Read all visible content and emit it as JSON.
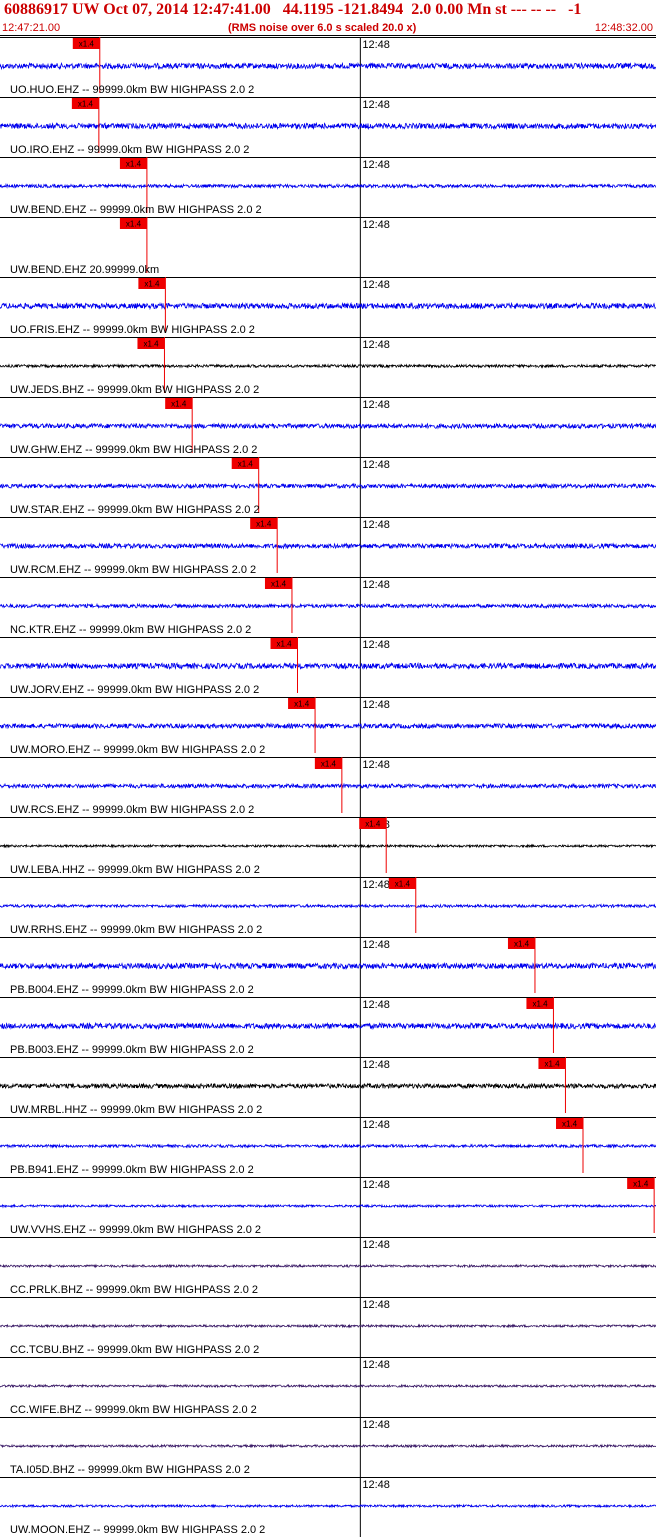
{
  "header": {
    "title": "60886917 UW Oct 07, 2014 12:47:41.00   44.1195 -121.8494  2.0 0.00 Mn st --- -- --   -1",
    "start_time": "12:47:21.00",
    "rms_note": "(RMS noise over 6.0 s scaled 20.0 x)",
    "end_time": "12:48:32.00"
  },
  "colors": {
    "blue": "#0000ee",
    "black": "#000000",
    "purple": "#3a1a66",
    "pick": "#ee0000"
  },
  "chart_data": {
    "type": "line",
    "title": "60886917 UW Oct 07, 2014 12:47:41.00   44.1195 -121.8494  2.0 0.00 Mn st --- -- --   -1",
    "x_range": [
      "12:47:21.00",
      "12:48:32.00"
    ],
    "minute_tick_label": "12:48",
    "pick_label": "x1.4",
    "channels": [
      {
        "label": "UO.HUO.EHZ -- 99999.0km BW  HIGHPASS  2.0  2",
        "color": "blue",
        "pick_time": "12:47:31.8",
        "amplitude": 0.3,
        "events": [
          [
            31.5,
            0.9,
            2.5
          ],
          [
            32.0,
            0.7,
            1.5
          ],
          [
            38.2,
            0.5,
            1.5
          ],
          [
            50.0,
            0.6,
            1.5
          ],
          [
            55.0,
            0.4,
            1.5
          ],
          [
            62.5,
            0.6,
            2.0
          ],
          [
            65.0,
            0.9,
            3.0
          ],
          [
            70.0,
            0.8,
            1.0
          ]
        ]
      },
      {
        "label": "UO.IRO.EHZ -- 99999.0km BW  HIGHPASS  2.0  2",
        "color": "blue",
        "pick_time": "12:47:31.7",
        "amplitude": 0.3,
        "events": [
          [
            31.5,
            0.9,
            2.5
          ],
          [
            34.0,
            0.5,
            1.5
          ],
          [
            38.0,
            0.7,
            1.5
          ],
          [
            44.0,
            0.5,
            1.5
          ],
          [
            48.0,
            0.4,
            1.5
          ],
          [
            55.0,
            0.5,
            1.5
          ],
          [
            64.5,
            0.9,
            3.0
          ],
          [
            70.0,
            0.7,
            1.0
          ]
        ]
      },
      {
        "label": "UW.BEND.EHZ -- 99999.0km BW  HIGHPASS  2.0  2",
        "color": "blue",
        "pick_time": "12:47:36.9",
        "amplitude": 0.18,
        "events": [
          [
            30.5,
            0.4,
            3.0
          ],
          [
            37.5,
            0.7,
            1.5
          ],
          [
            54.5,
            0.3,
            1.5
          ],
          [
            61.0,
            0.3,
            2.0
          ]
        ]
      },
      {
        "label": "UW.BEND.EHZ 20.99999.0km",
        "color": "blue",
        "pick_time": "12:47:36.9",
        "amplitude": 0.0,
        "events": []
      },
      {
        "label": "UO.FRIS.EHZ -- 99999.0km BW  HIGHPASS  2.0  2",
        "color": "blue",
        "pick_time": "12:47:38.9",
        "amplitude": 0.3,
        "events": [
          [
            30.5,
            0.8,
            2.0
          ],
          [
            33.5,
            0.9,
            1.5
          ],
          [
            36.5,
            0.6,
            1.5
          ],
          [
            38.0,
            0.6,
            1.5
          ],
          [
            44.0,
            0.5,
            1.5
          ],
          [
            49.0,
            0.5,
            1.5
          ],
          [
            56.0,
            0.7,
            1.5
          ],
          [
            64.0,
            0.9,
            3.0
          ],
          [
            70.0,
            0.6,
            1.0
          ]
        ]
      },
      {
        "label": "UW.JEDS.BHZ -- 99999.0km BW  HIGHPASS  2.0  2",
        "color": "black",
        "pick_time": "12:47:38.8",
        "amplitude": 0.15,
        "events": []
      },
      {
        "label": "UW.GHW.EHZ -- 99999.0km BW  HIGHPASS  2.0  2",
        "color": "blue",
        "pick_time": "12:47:41.8",
        "amplitude": 0.25,
        "events": [
          [
            43.0,
            1.0,
            5.0
          ],
          [
            47.0,
            0.6,
            2.0
          ]
        ]
      },
      {
        "label": "UW.STAR.EHZ -- 99999.0km BW  HIGHPASS  2.0  2",
        "color": "blue",
        "pick_time": "12:47:49.0",
        "amplitude": 0.22,
        "events": [
          [
            49.3,
            0.9,
            1.5
          ],
          [
            61.0,
            0.3,
            1.5
          ]
        ]
      },
      {
        "label": "UW.RCM.EHZ -- 99999.0km BW  HIGHPASS  2.0  2",
        "color": "blue",
        "pick_time": "12:47:51.0",
        "amplitude": 0.25,
        "events": [
          [
            37.5,
            0.5,
            2.0
          ],
          [
            51.5,
            0.6,
            2.0
          ],
          [
            58.5,
            0.9,
            4.0
          ],
          [
            62.0,
            0.8,
            1.0
          ]
        ]
      },
      {
        "label": "NC.KTR.EHZ -- 99999.0km BW  HIGHPASS  2.0  2",
        "color": "blue",
        "pick_time": "12:47:52.6",
        "amplitude": 0.2,
        "events": [
          [
            52.5,
            1.0,
            2.5
          ],
          [
            54.5,
            0.9,
            2.5
          ],
          [
            57.5,
            0.5,
            2.0
          ],
          [
            66.0,
            0.4,
            1.5
          ]
        ]
      },
      {
        "label": "UW.JORV.EHZ -- 99999.0km BW  HIGHPASS  2.0  2",
        "color": "blue",
        "pick_time": "12:47:53.2",
        "amplitude": 0.3,
        "events": [
          [
            29.0,
            0.9,
            4.0
          ],
          [
            32.0,
            0.5,
            2.0
          ],
          [
            40.0,
            0.4,
            2.0
          ],
          [
            53.5,
            0.6,
            3.0
          ],
          [
            60.0,
            0.6,
            3.0
          ],
          [
            68.0,
            0.6,
            3.0
          ]
        ]
      },
      {
        "label": "UW.MORO.EHZ -- 99999.0km BW  HIGHPASS  2.0  2",
        "color": "blue",
        "pick_time": "12:47:55.1",
        "amplitude": 0.25,
        "events": [
          [
            56.0,
            0.9,
            4.0
          ],
          [
            58.5,
            1.0,
            6.0
          ]
        ]
      },
      {
        "label": "UW.RCS.EHZ -- 99999.0km BW  HIGHPASS  2.0  2",
        "color": "blue",
        "pick_time": "12:47:58.0",
        "amplitude": 0.22,
        "events": [
          [
            36.5,
            0.6,
            1.5
          ],
          [
            57.5,
            0.9,
            1.5
          ],
          [
            61.5,
            0.4,
            3.0
          ],
          [
            73.5,
            0.4,
            2.0
          ]
        ]
      },
      {
        "label": "UW.LEBA.HHZ -- 99999.0km BW  HIGHPASS  2.0  2",
        "color": "black",
        "pick_time": "12:48:02.8",
        "amplitude": 0.12,
        "events": [
          [
            62.5,
            0.5,
            2.0
          ],
          [
            71.5,
            0.3,
            2.5
          ]
        ]
      },
      {
        "label": "UW.RRHS.EHZ -- 99999.0km BW  HIGHPASS  2.0  2",
        "color": "blue",
        "pick_time": "12:48:06.0",
        "amplitude": 0.15,
        "events": [
          [
            22.0,
            0.3,
            1.5
          ],
          [
            64.5,
            0.3,
            1.5
          ],
          [
            67.0,
            0.5,
            2.5
          ]
        ]
      },
      {
        "label": "PB.B004.EHZ -- 99999.0km BW  HIGHPASS  2.0  2",
        "color": "blue",
        "pick_time": "12:48:18.9",
        "amplitude": 0.3,
        "events": [
          [
            78.0,
            0.6,
            5.0
          ],
          [
            81.0,
            0.9,
            4.0
          ]
        ]
      },
      {
        "label": "PB.B003.EHZ -- 99999.0km BW  HIGHPASS  2.0  2",
        "color": "blue",
        "pick_time": "12:48:20.9",
        "amplitude": 0.3,
        "events": [
          [
            83.0,
            0.9,
            5.0
          ],
          [
            86.0,
            0.7,
            3.0
          ]
        ]
      },
      {
        "label": "UW.MRBL.HHZ -- 99999.0km BW  HIGHPASS  2.0  2",
        "color": "black",
        "pick_time": "12:48:22.2",
        "amplitude": 0.25,
        "events": [
          [
            82.5,
            0.6,
            2.5
          ]
        ]
      },
      {
        "label": "PB.B941.EHZ -- 99999.0km BW  HIGHPASS  2.0  2",
        "color": "blue",
        "pick_time": "12:48:24.1",
        "amplitude": 0.15,
        "events": [
          [
            84.5,
            0.8,
            3.0
          ]
        ]
      },
      {
        "label": "UW.VVHS.EHZ -- 99999.0km BW  HIGHPASS  2.0  2",
        "color": "blue",
        "pick_time": "12:48:31.8",
        "amplitude": 0.12,
        "events": []
      },
      {
        "label": "CC.PRLK.BHZ -- 99999.0km BW  HIGHPASS  2.0  2",
        "color": "purple",
        "pick_time": null,
        "amplitude": 0.12,
        "events": []
      },
      {
        "label": "CC.TCBU.BHZ -- 99999.0km BW  HIGHPASS  2.0  2",
        "color": "purple",
        "pick_time": null,
        "amplitude": 0.12,
        "events": []
      },
      {
        "label": "CC.WIFE.BHZ -- 99999.0km BW  HIGHPASS  2.0  2",
        "color": "purple",
        "pick_time": null,
        "amplitude": 0.12,
        "events": []
      },
      {
        "label": "TA.I05D.BHZ -- 99999.0km BW  HIGHPASS  2.0  2",
        "color": "purple",
        "pick_time": null,
        "amplitude": 0.12,
        "events": []
      },
      {
        "label": "UW.MOON.EHZ -- 99999.0km BW  HIGHPASS  2.0  2",
        "color": "blue",
        "pick_time": null,
        "amplitude": 0.12,
        "events": []
      }
    ]
  }
}
